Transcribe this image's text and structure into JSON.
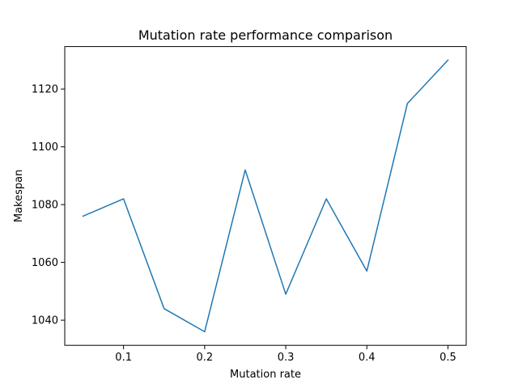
{
  "chart_data": {
    "type": "line",
    "title": "Mutation rate performance comparison",
    "xlabel": "Mutation rate",
    "ylabel": "Makespan",
    "xlim": [
      0.0275,
      0.5225
    ],
    "ylim": [
      1031.3,
      1134.7
    ],
    "xticks": [
      0.1,
      0.2,
      0.3,
      0.4,
      0.5
    ],
    "xtick_labels": [
      "0.1",
      "0.2",
      "0.3",
      "0.4",
      "0.5"
    ],
    "yticks": [
      1040,
      1060,
      1080,
      1100,
      1120
    ],
    "ytick_labels": [
      "1040",
      "1060",
      "1080",
      "1100",
      "1120"
    ],
    "grid": false,
    "series": [
      {
        "color": "#1f77b4",
        "x": [
          0.05,
          0.1,
          0.15,
          0.2,
          0.25,
          0.3,
          0.35,
          0.4,
          0.45,
          0.5
        ],
        "y": [
          1076,
          1082,
          1044,
          1036,
          1092,
          1049,
          1082,
          1057,
          1115,
          1130
        ]
      }
    ]
  }
}
